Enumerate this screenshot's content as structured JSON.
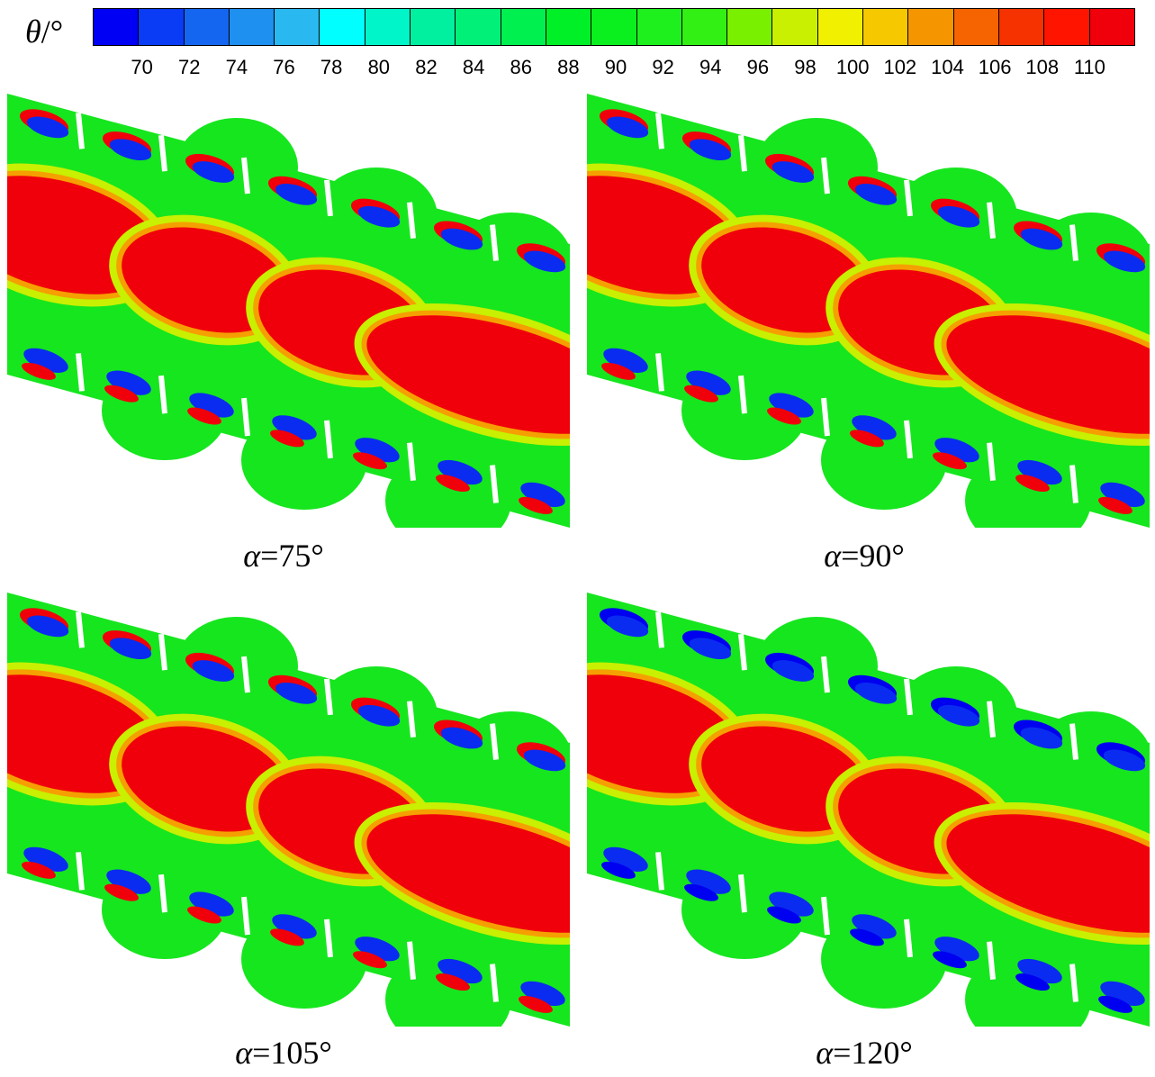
{
  "colorbar": {
    "symbol": "θ",
    "unit": "/°",
    "colors": [
      "#0000f5",
      "#0a3cf5",
      "#1466f0",
      "#1e90f0",
      "#2ab8f0",
      "#00ffff",
      "#00f5c8",
      "#00f0a0",
      "#00f078",
      "#00f050",
      "#00f028",
      "#0af01e",
      "#1ef01e",
      "#32f014",
      "#78f000",
      "#c8f000",
      "#f0f000",
      "#f5c800",
      "#f59600",
      "#f56400",
      "#f53200",
      "#ff1400",
      "#f0000a"
    ],
    "ticks": [
      "70",
      "72",
      "74",
      "76",
      "78",
      "80",
      "82",
      "84",
      "86",
      "88",
      "90",
      "92",
      "94",
      "96",
      "98",
      "100",
      "102",
      "104",
      "106",
      "108",
      "110"
    ]
  },
  "panels": [
    {
      "alpha_symbol": "α",
      "value": "=75°"
    },
    {
      "alpha_symbol": "α",
      "value": "=90°"
    },
    {
      "alpha_symbol": "α",
      "value": "=105°"
    },
    {
      "alpha_symbol": "α",
      "value": "=120°"
    }
  ]
}
